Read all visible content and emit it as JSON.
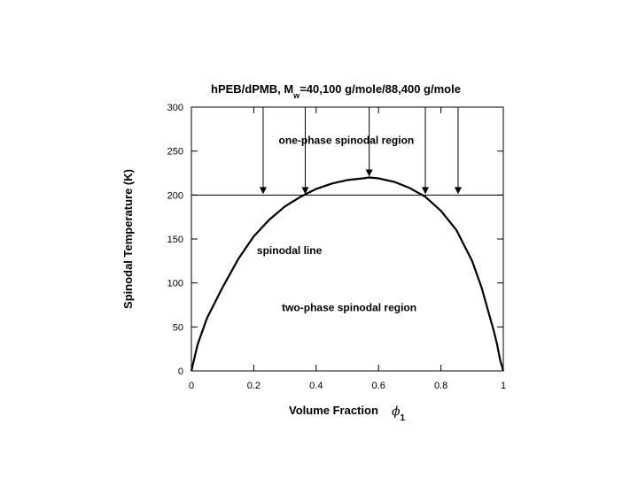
{
  "chart_data": {
    "type": "line",
    "title": {
      "main": "hPEB/dPMB, M",
      "subscript": "w",
      "rest": "=40,100 g/mole/88,400 g/mole"
    },
    "xlabel": {
      "text": "Volume Fraction",
      "symbol": "ϕ",
      "subscript": "1"
    },
    "ylabel": "Spinodal Temperature (K)",
    "xlim": [
      0,
      1
    ],
    "ylim": [
      0,
      300
    ],
    "x_ticks": [
      {
        "value": 0,
        "label": "0"
      },
      {
        "value": 0.2,
        "label": "0.2"
      },
      {
        "value": 0.4,
        "label": "0.4"
      },
      {
        "value": 0.6,
        "label": "0.6"
      },
      {
        "value": 0.8,
        "label": "0.8"
      },
      {
        "value": 1,
        "label": "1"
      }
    ],
    "y_ticks": [
      {
        "value": 0,
        "label": "0"
      },
      {
        "value": 50,
        "label": "50"
      },
      {
        "value": 100,
        "label": "100"
      },
      {
        "value": 150,
        "label": "150"
      },
      {
        "value": 200,
        "label": "200"
      },
      {
        "value": 250,
        "label": "250"
      },
      {
        "value": 300,
        "label": "300"
      }
    ],
    "grid": false,
    "series": [
      {
        "color": "#000000",
        "x": [
          0,
          0.02,
          0.05,
          0.1,
          0.15,
          0.2,
          0.25,
          0.3,
          0.35,
          0.4,
          0.45,
          0.5,
          0.55,
          0.57,
          0.6,
          0.65,
          0.7,
          0.75,
          0.8,
          0.85,
          0.9,
          0.93,
          0.95,
          0.97,
          0.98,
          0.99,
          1.0
        ],
        "y": [
          0,
          30,
          60,
          95,
          127,
          153,
          172,
          187,
          198,
          207,
          213,
          217,
          219,
          220,
          219,
          215,
          208,
          198,
          182,
          160,
          125,
          95,
          70,
          45,
          30,
          12,
          0
        ]
      }
    ],
    "reference_line": {
      "y": 200
    },
    "arrows": [
      {
        "x": 0.23,
        "y_from": 300,
        "y_to": 200
      },
      {
        "x": 0.365,
        "y_from": 300,
        "y_to": 200
      },
      {
        "x": 0.57,
        "y_from": 300,
        "y_to": 220
      },
      {
        "x": 0.75,
        "y_from": 300,
        "y_to": 200
      },
      {
        "x": 0.855,
        "y_from": 300,
        "y_to": 200
      }
    ],
    "annotations": [
      {
        "text": "one-phase spinodal region",
        "x": 0.28,
        "y": 258
      },
      {
        "text": "spinodal line",
        "x": 0.21,
        "y": 133
      },
      {
        "text": "two-phase spinodal region",
        "x": 0.29,
        "y": 68
      }
    ]
  }
}
